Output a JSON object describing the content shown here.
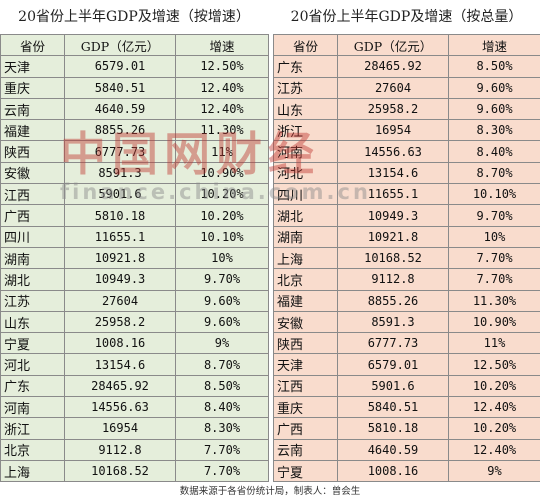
{
  "left": {
    "title": "20省份上半年GDP及增速（按增速）",
    "headers": {
      "province": "省份",
      "gdp": "GDP（亿元）",
      "growth": "增速"
    },
    "rows": [
      {
        "province": "天津",
        "gdp": "6579.01",
        "growth": "12.50%"
      },
      {
        "province": "重庆",
        "gdp": "5840.51",
        "growth": "12.40%"
      },
      {
        "province": "云南",
        "gdp": "4640.59",
        "growth": "12.40%"
      },
      {
        "province": "福建",
        "gdp": "8855.26",
        "growth": "11.30%"
      },
      {
        "province": "陕西",
        "gdp": "6777.73",
        "growth": "11%"
      },
      {
        "province": "安徽",
        "gdp": "8591.3",
        "growth": "10.90%"
      },
      {
        "province": "江西",
        "gdp": "5901.6",
        "growth": "10.20%"
      },
      {
        "province": "广西",
        "gdp": "5810.18",
        "growth": "10.20%"
      },
      {
        "province": "四川",
        "gdp": "11655.1",
        "growth": "10.10%"
      },
      {
        "province": "湖南",
        "gdp": "10921.8",
        "growth": "10%"
      },
      {
        "province": "湖北",
        "gdp": "10949.3",
        "growth": "9.70%"
      },
      {
        "province": "江苏",
        "gdp": "27604",
        "growth": "9.60%"
      },
      {
        "province": "山东",
        "gdp": "25958.2",
        "growth": "9.60%"
      },
      {
        "province": "宁夏",
        "gdp": "1008.16",
        "growth": "9%"
      },
      {
        "province": "河北",
        "gdp": "13154.6",
        "growth": "8.70%"
      },
      {
        "province": "广东",
        "gdp": "28465.92",
        "growth": "8.50%"
      },
      {
        "province": "河南",
        "gdp": "14556.63",
        "growth": "8.40%"
      },
      {
        "province": "浙江",
        "gdp": "16954",
        "growth": "8.30%"
      },
      {
        "province": "北京",
        "gdp": "9112.8",
        "growth": "7.70%"
      },
      {
        "province": "上海",
        "gdp": "10168.52",
        "growth": "7.70%"
      }
    ]
  },
  "right": {
    "title": "20省份上半年GDP及增速（按总量）",
    "headers": {
      "province": "省份",
      "gdp": "GDP（亿元）",
      "growth": "增速"
    },
    "rows": [
      {
        "province": "广东",
        "gdp": "28465.92",
        "growth": "8.50%"
      },
      {
        "province": "江苏",
        "gdp": "27604",
        "growth": "9.60%"
      },
      {
        "province": "山东",
        "gdp": "25958.2",
        "growth": "9.60%"
      },
      {
        "province": "浙江",
        "gdp": "16954",
        "growth": "8.30%"
      },
      {
        "province": "河南",
        "gdp": "14556.63",
        "growth": "8.40%"
      },
      {
        "province": "河北",
        "gdp": "13154.6",
        "growth": "8.70%"
      },
      {
        "province": "四川",
        "gdp": "11655.1",
        "growth": "10.10%"
      },
      {
        "province": "湖北",
        "gdp": "10949.3",
        "growth": "9.70%"
      },
      {
        "province": "湖南",
        "gdp": "10921.8",
        "growth": "10%"
      },
      {
        "province": "上海",
        "gdp": "10168.52",
        "growth": "7.70%"
      },
      {
        "province": "北京",
        "gdp": "9112.8",
        "growth": "7.70%"
      },
      {
        "province": "福建",
        "gdp": "8855.26",
        "growth": "11.30%"
      },
      {
        "province": "安徽",
        "gdp": "8591.3",
        "growth": "10.90%"
      },
      {
        "province": "陕西",
        "gdp": "6777.73",
        "growth": "11%"
      },
      {
        "province": "天津",
        "gdp": "6579.01",
        "growth": "12.50%"
      },
      {
        "province": "江西",
        "gdp": "5901.6",
        "growth": "10.20%"
      },
      {
        "province": "重庆",
        "gdp": "5840.51",
        "growth": "12.40%"
      },
      {
        "province": "广西",
        "gdp": "5810.18",
        "growth": "10.20%"
      },
      {
        "province": "云南",
        "gdp": "4640.59",
        "growth": "12.40%"
      },
      {
        "province": "宁夏",
        "gdp": "1008.16",
        "growth": "9%"
      }
    ]
  },
  "watermark": {
    "main": "中国网财经",
    "sub": "finance.china.com.cn"
  },
  "footer": "数据来源于各省份统计局，制表人：曾会生",
  "colors": {
    "left_bg": "#e5eedb",
    "right_bg": "#f9dccd",
    "grid": "#8a8a8a",
    "watermark_red": "#c03a33"
  }
}
